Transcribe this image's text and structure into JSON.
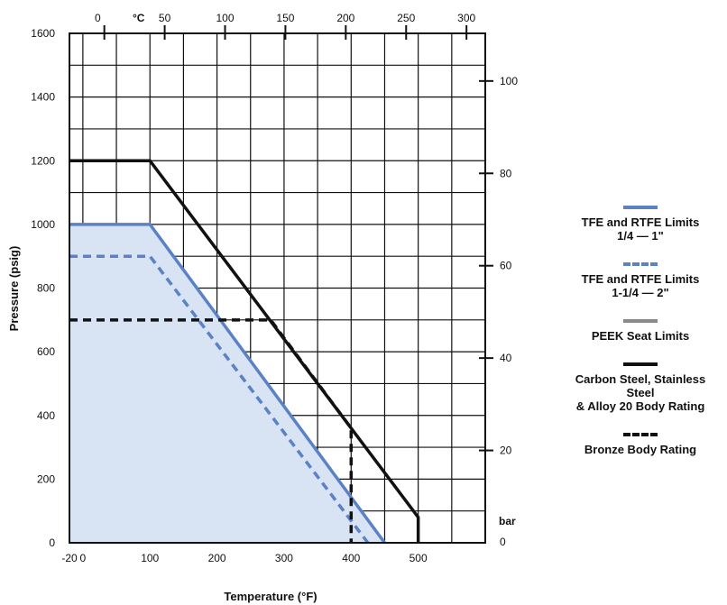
{
  "chart_data": {
    "type": "line",
    "xlabel": "Temperature (°F)",
    "ylabel": "Pressure (psig)",
    "xlim": [
      -20,
      600
    ],
    "ylim": [
      0,
      1600
    ],
    "grid": true,
    "x_ticks": [
      "-20",
      "0",
      "100",
      "200",
      "300",
      "400",
      "500"
    ],
    "x_tick_values": [
      -20,
      0,
      100,
      200,
      300,
      400,
      500
    ],
    "y_ticks": [
      "0",
      "200",
      "400",
      "600",
      "800",
      "1000",
      "1200",
      "1400",
      "1600"
    ],
    "y_tick_values": [
      0,
      200,
      400,
      600,
      800,
      1000,
      1200,
      1400,
      1600
    ],
    "top_axis": {
      "unit": "°C",
      "ticks": [
        "0",
        "50",
        "100",
        "150",
        "200",
        "250",
        "300"
      ],
      "tick_values": [
        0,
        50,
        100,
        150,
        200,
        250,
        300
      ]
    },
    "right_axis": {
      "unit": "bar",
      "ticks": [
        "0",
        "20",
        "40",
        "60",
        "80",
        "100"
      ],
      "tick_values": [
        0,
        20,
        40,
        60,
        80,
        100
      ]
    },
    "series": [
      {
        "name": "TFE and RTFE Limits\n1/4 — 1\"",
        "color": "#5b82c4",
        "style": "solid",
        "x": [
          -20,
          100,
          450,
          450
        ],
        "y": [
          1000,
          1000,
          0,
          0
        ],
        "shaded": true
      },
      {
        "name": "TFE and RTFE Limits\n1-1/4 — 2\"",
        "color": "#5b82c4",
        "style": "dashed",
        "x": [
          -20,
          100,
          425
        ],
        "y": [
          900,
          900,
          0
        ]
      },
      {
        "name": "PEEK Seat Limits",
        "color": "#8a8a8a",
        "style": "solid",
        "x": [],
        "y": []
      },
      {
        "name": "Carbon Steel, Stainless Steel\n& Alloy 20 Body Rating",
        "color": "#111111",
        "style": "solid",
        "x": [
          -20,
          100,
          500,
          500
        ],
        "y": [
          1200,
          1200,
          80,
          0
        ]
      },
      {
        "name": "Bronze Body Rating",
        "color": "#111111",
        "style": "dashed",
        "x": [
          -20,
          280,
          400,
          400
        ],
        "y": [
          700,
          700,
          360,
          0
        ]
      }
    ]
  }
}
